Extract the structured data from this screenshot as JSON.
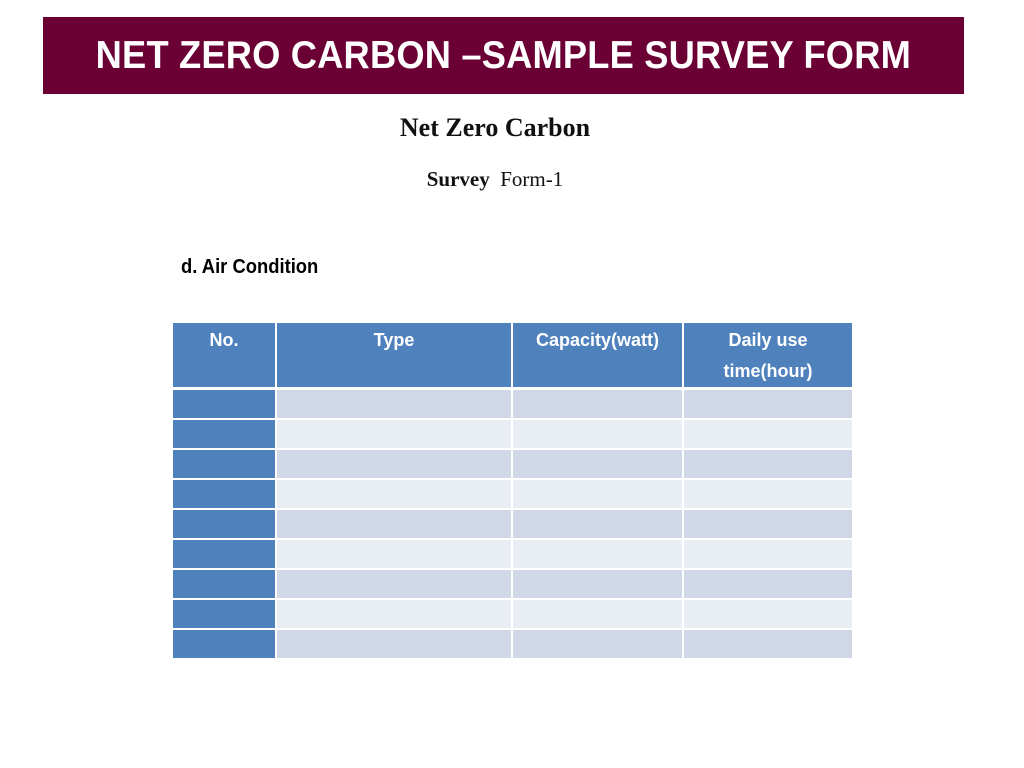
{
  "banner": {
    "title": "NET ZERO CARBON –SAMPLE SURVEY FORM"
  },
  "document": {
    "title": "Net Zero Carbon",
    "subtitle_bold": "Survey",
    "subtitle_rest": "Form-1"
  },
  "section": {
    "heading": "d. Air Condition"
  },
  "table": {
    "headers": [
      "No.",
      "Type",
      "Capacity(watt)",
      "Daily use time(hour)"
    ],
    "row_count": 9,
    "rows": [
      [
        "",
        "",
        "",
        ""
      ],
      [
        "",
        "",
        "",
        ""
      ],
      [
        "",
        "",
        "",
        ""
      ],
      [
        "",
        "",
        "",
        ""
      ],
      [
        "",
        "",
        "",
        ""
      ],
      [
        "",
        "",
        "",
        ""
      ],
      [
        "",
        "",
        "",
        ""
      ],
      [
        "",
        "",
        "",
        ""
      ],
      [
        "",
        "",
        "",
        ""
      ]
    ]
  },
  "colors": {
    "banner_bg": "#6b0034",
    "header_bg": "#4f81bd",
    "row_dark": "#d0d8e8",
    "row_light": "#e9edf4"
  }
}
